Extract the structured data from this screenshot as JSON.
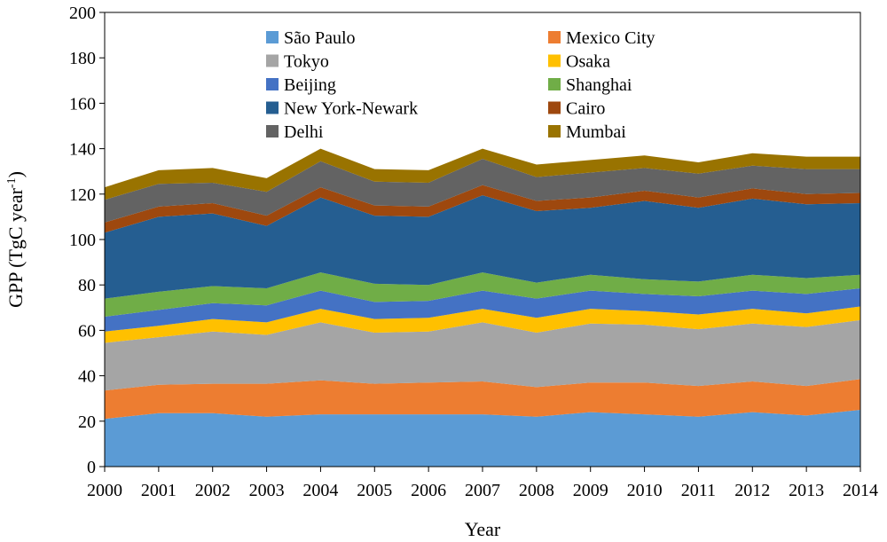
{
  "chart_data": {
    "type": "area",
    "stacked": true,
    "title": "",
    "xlabel": "Year",
    "ylabel": "GPP (TgC year",
    "ylabel_superscript": "-1",
    "ylabel_close": ")",
    "ylim": [
      0,
      200
    ],
    "y_ticks": [
      0,
      20,
      40,
      60,
      80,
      100,
      120,
      140,
      160,
      180,
      200
    ],
    "categories": [
      "2000",
      "2001",
      "2002",
      "2003",
      "2004",
      "2005",
      "2006",
      "2007",
      "2008",
      "2009",
      "2010",
      "2011",
      "2012",
      "2013",
      "2014"
    ],
    "legend_position": "top-center",
    "series": [
      {
        "name": "São Paulo",
        "color": "#5b9bd5",
        "values": [
          21,
          23.5,
          23.5,
          22,
          23,
          23,
          23,
          23,
          22,
          24,
          23,
          22,
          24,
          22.5,
          25
        ]
      },
      {
        "name": "Mexico City",
        "color": "#ed7d31",
        "values": [
          12.5,
          12.5,
          13,
          14.5,
          15,
          13.5,
          14,
          14.5,
          13,
          13,
          14,
          13.5,
          13.5,
          13,
          13.5
        ]
      },
      {
        "name": "Tokyo",
        "color": "#a5a5a5",
        "values": [
          21,
          21,
          23,
          21.5,
          25.5,
          22.5,
          22.5,
          26,
          24,
          26,
          25.5,
          25,
          25.5,
          26,
          26
        ]
      },
      {
        "name": "Osaka",
        "color": "#ffc000",
        "values": [
          5,
          5,
          5.5,
          5.5,
          6,
          6,
          6,
          6,
          6.5,
          6.5,
          6,
          6.5,
          6.5,
          6,
          6
        ]
      },
      {
        "name": "Beijing",
        "color": "#4472c4",
        "values": [
          6.5,
          7,
          7,
          7.5,
          8,
          7.5,
          7.5,
          8,
          8.5,
          8,
          7.5,
          8,
          8,
          8.5,
          8
        ]
      },
      {
        "name": "Shanghai",
        "color": "#70ad47",
        "values": [
          8,
          8,
          7.5,
          7.5,
          8,
          8,
          7,
          8,
          7,
          7,
          6.5,
          6.5,
          7,
          7,
          6
        ]
      },
      {
        "name": "New York-Newark",
        "color": "#255e91",
        "values": [
          29,
          33,
          32,
          27.5,
          33,
          30,
          30,
          34,
          31.5,
          29.5,
          34.5,
          32.5,
          33.5,
          32.5,
          31.5
        ]
      },
      {
        "name": "Cairo",
        "color": "#9e480e",
        "values": [
          4.5,
          4.5,
          4.5,
          4.5,
          4.5,
          4.5,
          4.5,
          4.5,
          4.5,
          4.5,
          4.5,
          4.5,
          4.5,
          4.5,
          4.5
        ]
      },
      {
        "name": "Delhi",
        "color": "#636363",
        "values": [
          10,
          10,
          9,
          10.5,
          11.5,
          10.5,
          10.5,
          11.5,
          10.5,
          11,
          10,
          10.5,
          10,
          11,
          10.5
        ]
      },
      {
        "name": "Mumbai",
        "color": "#997300",
        "values": [
          5.5,
          6,
          6.5,
          6,
          5.5,
          5.5,
          5.5,
          4.5,
          5.5,
          5.5,
          5.5,
          5,
          5.5,
          5.5,
          5.5
        ]
      }
    ]
  }
}
